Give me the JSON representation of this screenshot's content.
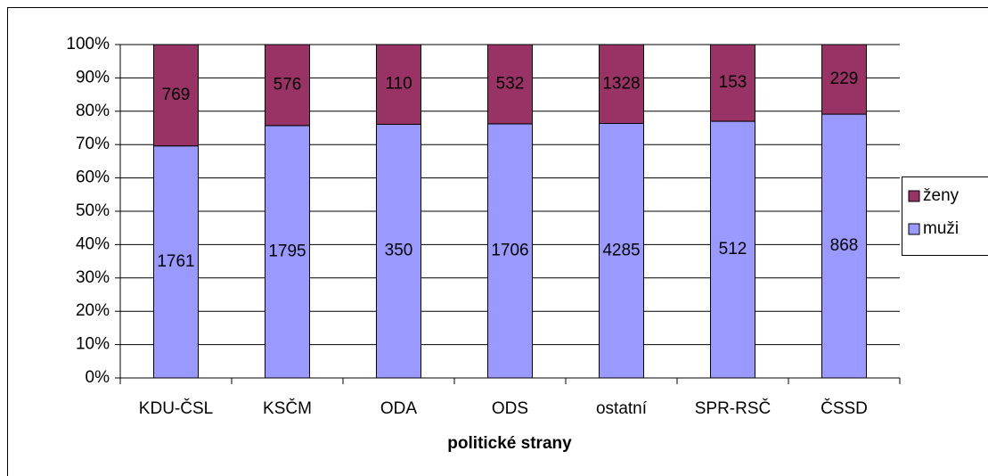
{
  "chart_data": {
    "type": "bar",
    "stacking": "percent",
    "x_label": "politické strany",
    "categories": [
      "KDU-ČSL",
      "KSČM",
      "ODA",
      "ODS",
      "ostatní",
      "SPR-RSČ",
      "ČSSD"
    ],
    "series": [
      {
        "name": "muži",
        "color": "#9999ff",
        "values": [
          1761,
          1795,
          350,
          1706,
          4285,
          512,
          868
        ]
      },
      {
        "name": "ženy",
        "color": "#993366",
        "values": [
          769,
          576,
          110,
          532,
          1328,
          153,
          229
        ]
      }
    ],
    "ylim": [
      0,
      100
    ],
    "yticks": [
      {
        "value": 0,
        "label": "0%"
      },
      {
        "value": 10,
        "label": "10%"
      },
      {
        "value": 20,
        "label": "20%"
      },
      {
        "value": 30,
        "label": "30%"
      },
      {
        "value": 40,
        "label": "40%"
      },
      {
        "value": 50,
        "label": "50%"
      },
      {
        "value": 60,
        "label": "60%"
      },
      {
        "value": 70,
        "label": "70%"
      },
      {
        "value": 80,
        "label": "80%"
      },
      {
        "value": 90,
        "label": "90%"
      },
      {
        "value": 100,
        "label": "100%"
      }
    ],
    "grid": true,
    "legend": "right"
  }
}
